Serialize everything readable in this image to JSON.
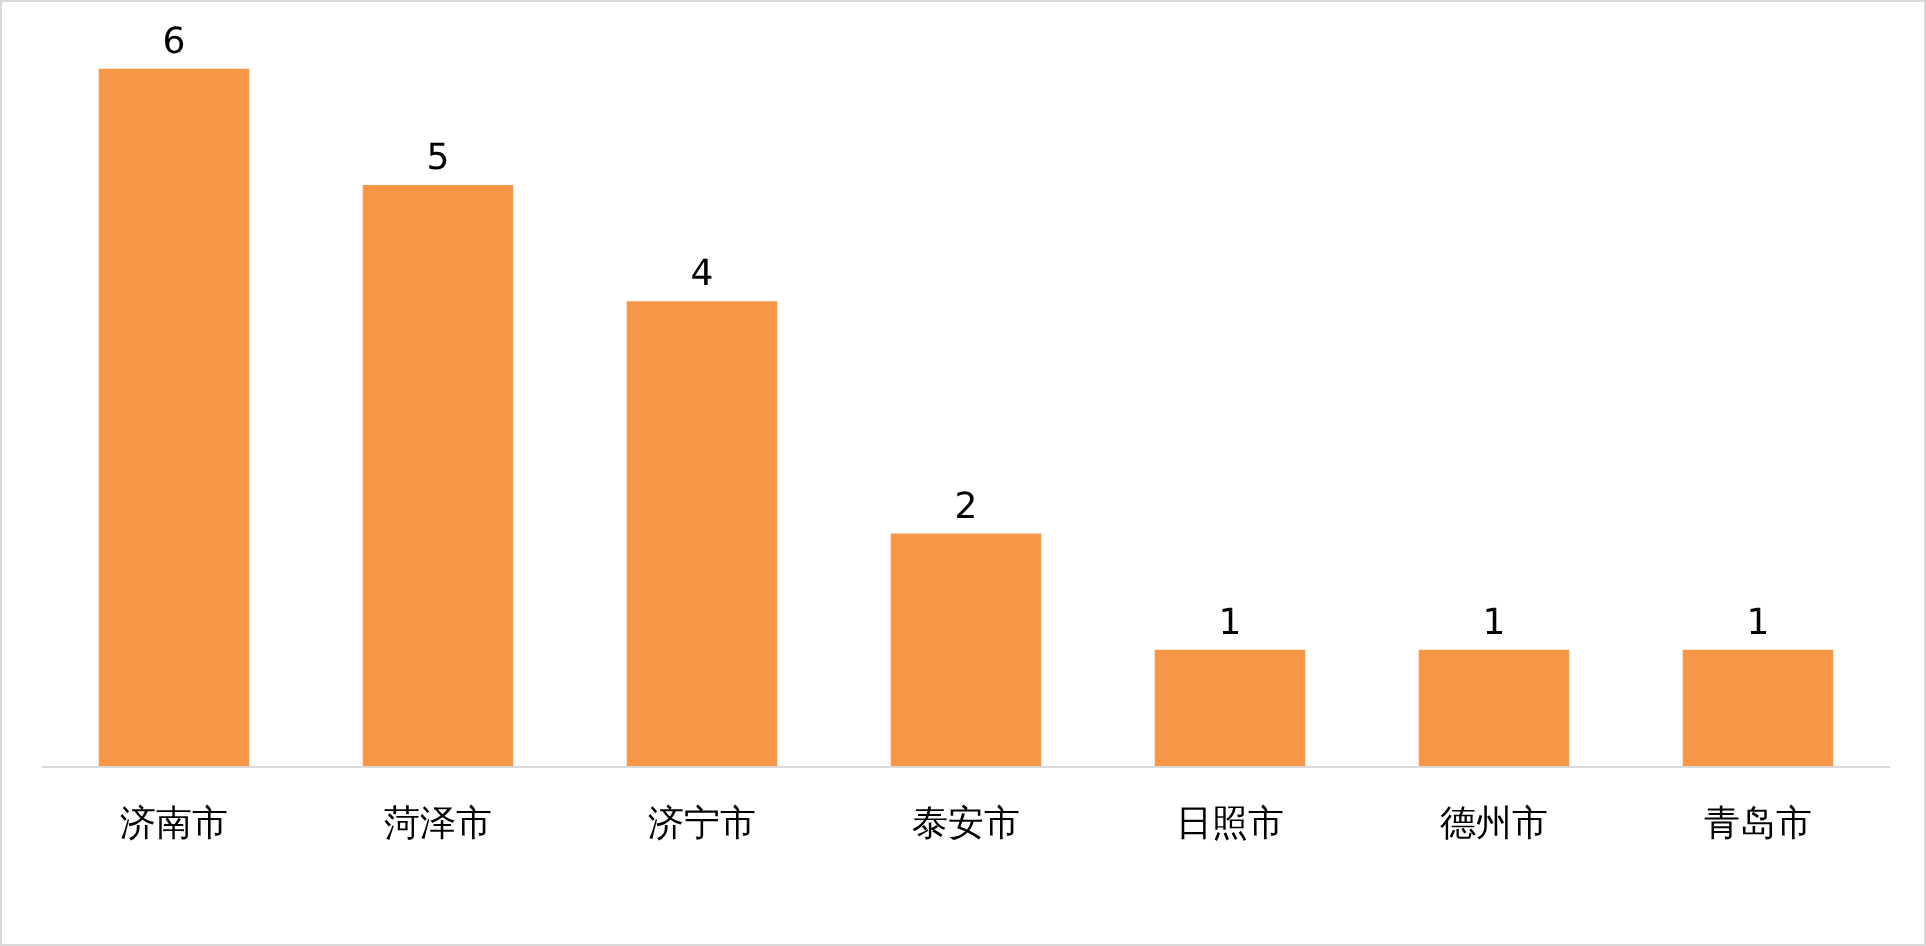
{
  "chart_data": {
    "type": "bar",
    "categories": [
      "济南市",
      "菏泽市",
      "济宁市",
      "泰安市",
      "日照市",
      "德州市",
      "青岛市"
    ],
    "values": [
      6,
      5,
      4,
      2,
      1,
      1,
      1
    ],
    "color": "#f79646",
    "data_labels": true,
    "tick_labels": "x"
  }
}
